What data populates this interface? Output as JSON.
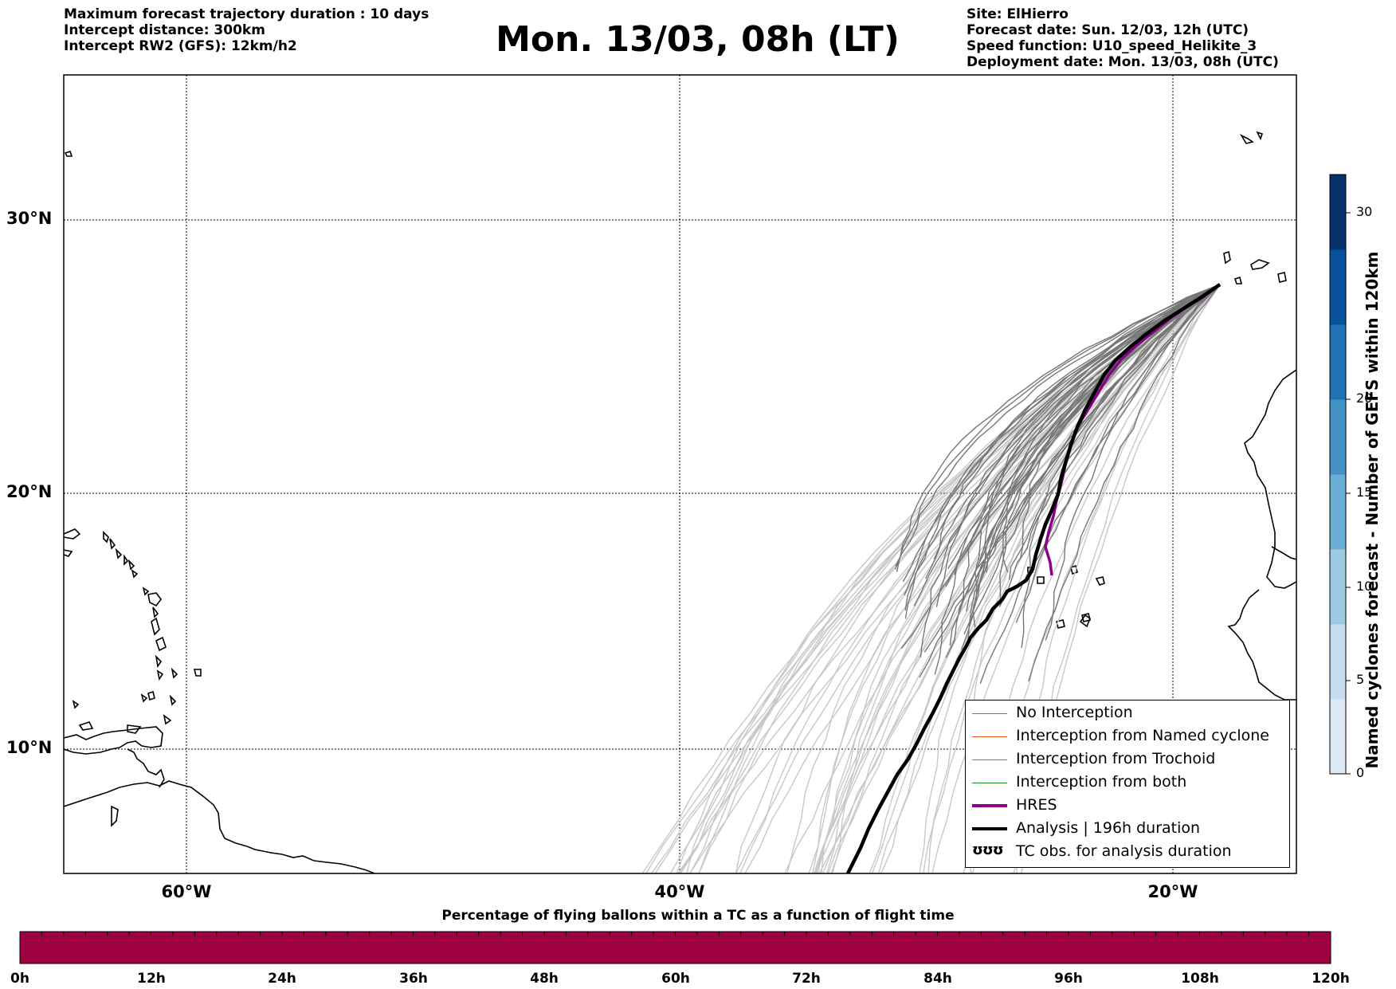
{
  "header": {
    "left_lines": [
      "Maximum forecast trajectory duration : 10 days",
      "Intercept distance: 300km",
      "Intercept RW2 (GFS):  12km/h2"
    ],
    "title": "Mon. 13/03, 08h (LT)",
    "right_lines": [
      "Site: ElHierro",
      "Forecast date: Sun. 12/03, 12h (UTC)",
      "Speed function: U10_speed_Helikite_3",
      "Deployment date: Mon. 13/03, 08h (UTC)"
    ]
  },
  "map": {
    "lat_labels": [
      "30°N",
      "20°N",
      "10°N"
    ],
    "lon_labels": [
      "60°W",
      "40°W",
      "20°W"
    ]
  },
  "legend": {
    "items": [
      {
        "label": "No Interception",
        "color": "#777777"
      },
      {
        "label": "Interception from Named cyclone",
        "color": "#e8541c"
      },
      {
        "label": "Interception from Trochoid",
        "color": "#8a8a18"
      },
      {
        "label": "Interception from both",
        "color": "#1b8a1b"
      },
      {
        "label": "HRES",
        "color": "#8b008b"
      },
      {
        "label": "Analysis | 196h duration",
        "color": "#000000"
      },
      {
        "label": "TC obs. for analysis duration",
        "symbol": "ʊʊʊ"
      }
    ]
  },
  "colorbar_right": {
    "title": "Named cyclones forecast - Number of GEFS within 120km",
    "ticks": [
      "0",
      "5",
      "10",
      "15",
      "20",
      "30"
    ],
    "colors": [
      "#dce8f5",
      "#c6dbef",
      "#9ecae1",
      "#6baed6",
      "#4292c6",
      "#2171b5",
      "#08519c",
      "#08306b"
    ]
  },
  "colorbar_bottom": {
    "title": "Percentage of flying ballons within a TC as a function of flight time",
    "ticks": [
      "0h",
      "12h",
      "24h",
      "36h",
      "48h",
      "60h",
      "72h",
      "84h",
      "96h",
      "108h",
      "120h"
    ],
    "color": "#9e0142"
  }
}
